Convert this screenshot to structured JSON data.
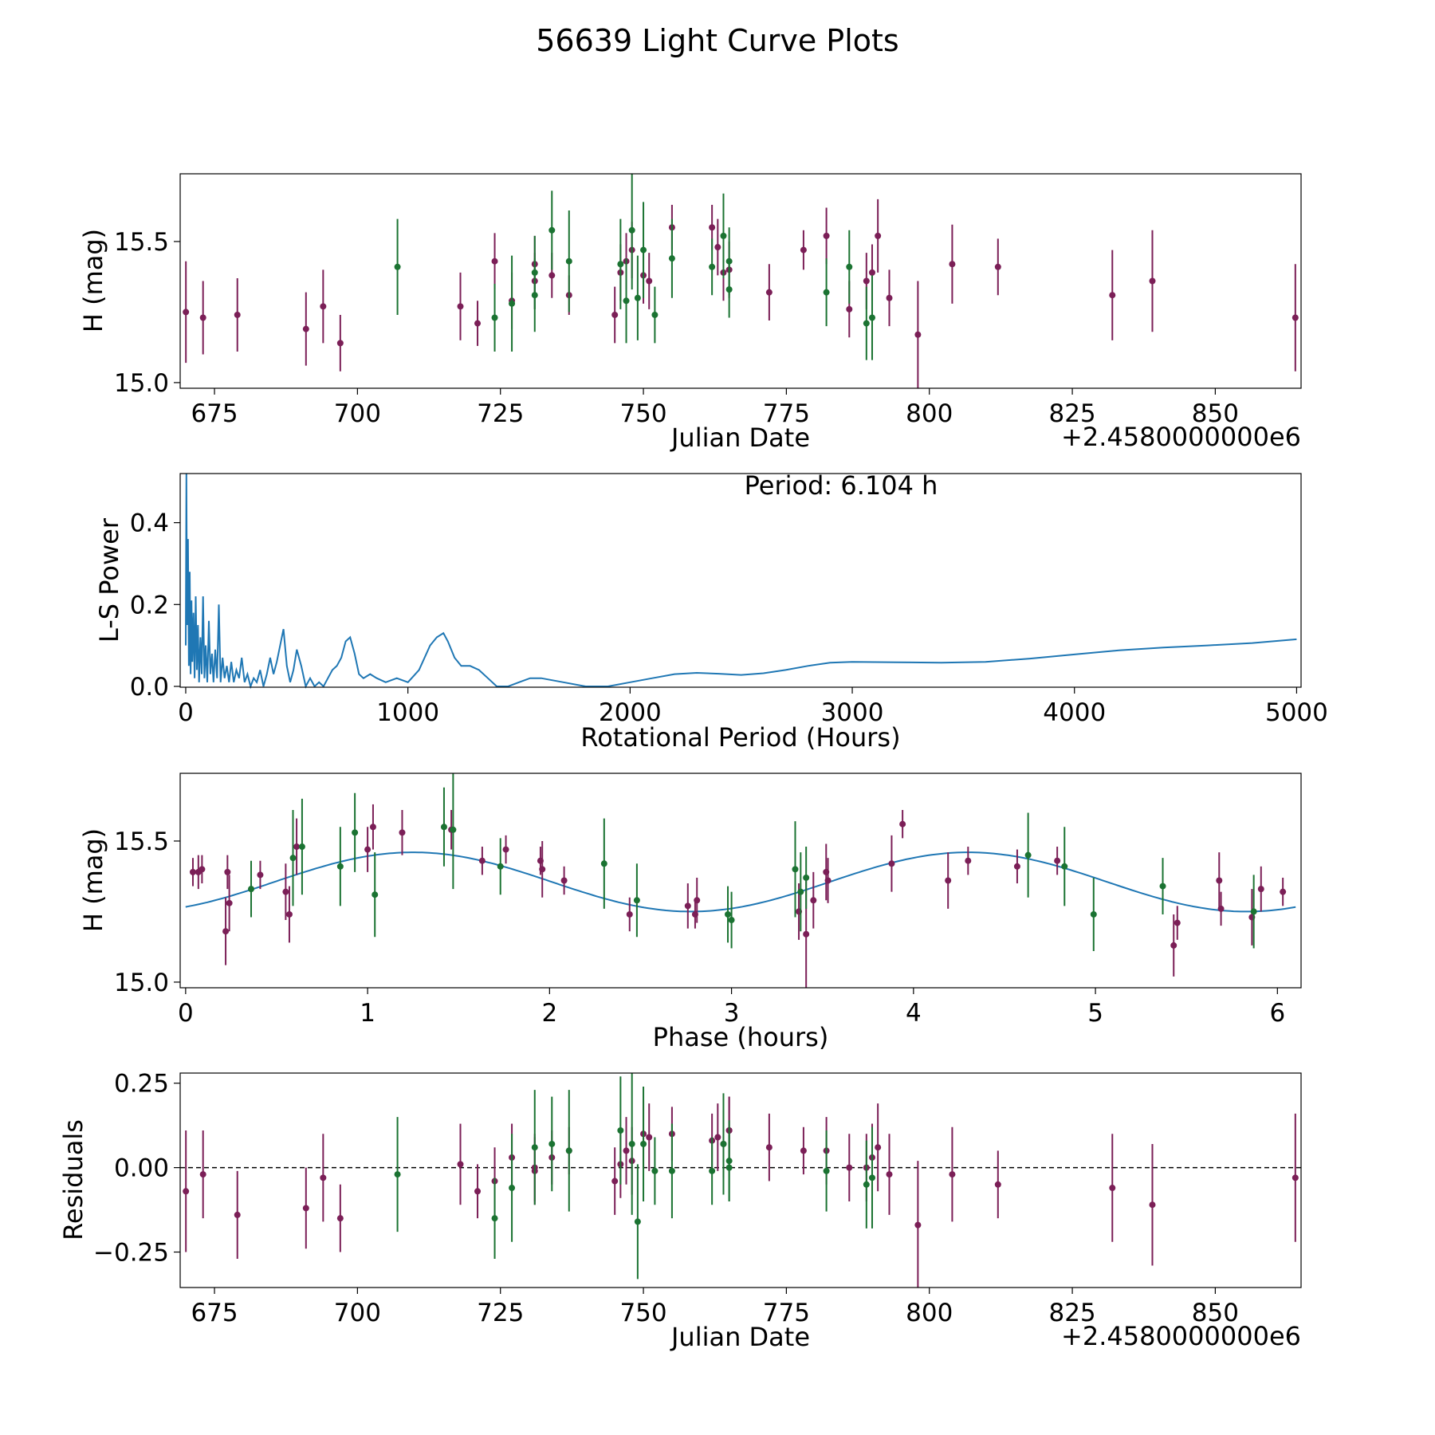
{
  "figure": {
    "title": "56639 Light Curve Plots"
  },
  "colors": {
    "band_r": "#7b1f57",
    "band_g": "#1b7332",
    "model": "#1f77b4",
    "axis": "#000000"
  },
  "chart_data": [
    {
      "type": "scatter",
      "name": "lightcurve",
      "xlabel": "Julian Date",
      "ylabel": "H (mag)",
      "offset_label": "+2.4580000000e6",
      "xlim": [
        669,
        865
      ],
      "ylim": [
        14.98,
        15.74
      ],
      "xticks": [
        675,
        700,
        725,
        750,
        775,
        800,
        825,
        850
      ],
      "yticks": [
        15.0,
        15.5
      ],
      "ytick_labels": [
        "15.0",
        "15.5"
      ],
      "series": [
        {
          "name": "purple band",
          "x": [
            670,
            673,
            679,
            691,
            694,
            697,
            718,
            721,
            724,
            727,
            731,
            731,
            734,
            737,
            745,
            746,
            747,
            748,
            750,
            751,
            755,
            762,
            763,
            764,
            765,
            772,
            778,
            782,
            786,
            789,
            790,
            791,
            793,
            798,
            804,
            812,
            832,
            839,
            864
          ],
          "y": [
            15.25,
            15.23,
            15.24,
            15.19,
            15.27,
            15.14,
            15.27,
            15.21,
            15.43,
            15.29,
            15.42,
            15.36,
            15.38,
            15.31,
            15.24,
            15.39,
            15.43,
            15.47,
            15.38,
            15.36,
            15.55,
            15.55,
            15.48,
            15.39,
            15.4,
            15.32,
            15.47,
            15.52,
            15.26,
            15.36,
            15.39,
            15.52,
            15.3,
            15.17,
            15.42,
            15.41,
            15.31,
            15.36,
            15.23
          ],
          "err": [
            0.18,
            0.13,
            0.13,
            0.13,
            0.13,
            0.1,
            0.12,
            0.08,
            0.1,
            0.1,
            0.1,
            0.1,
            0.08,
            0.07,
            0.1,
            0.1,
            0.1,
            0.1,
            0.1,
            0.1,
            0.08,
            0.08,
            0.1,
            0.1,
            0.1,
            0.1,
            0.07,
            0.1,
            0.1,
            0.1,
            0.1,
            0.13,
            0.1,
            0.19,
            0.14,
            0.1,
            0.16,
            0.18,
            0.19
          ]
        },
        {
          "name": "green band",
          "x": [
            707,
            724,
            727,
            731,
            731,
            734,
            737,
            746,
            747,
            748,
            749,
            750,
            752,
            755,
            762,
            764,
            765,
            765,
            782,
            786,
            789,
            790
          ],
          "y": [
            15.41,
            15.23,
            15.28,
            15.39,
            15.31,
            15.54,
            15.43,
            15.42,
            15.29,
            15.54,
            15.3,
            15.47,
            15.24,
            15.44,
            15.41,
            15.52,
            15.43,
            15.33,
            15.32,
            15.41,
            15.21,
            15.23
          ],
          "err": [
            0.17,
            0.12,
            0.17,
            0.13,
            0.13,
            0.14,
            0.18,
            0.16,
            0.15,
            0.21,
            0.15,
            0.17,
            0.1,
            0.14,
            0.1,
            0.15,
            0.12,
            0.1,
            0.12,
            0.13,
            0.13,
            0.15
          ]
        }
      ]
    },
    {
      "type": "line",
      "name": "periodogram",
      "xlabel": "Rotational Period (Hours)",
      "ylabel": "L-S Power",
      "annotation": "Period: 6.104 h",
      "xlim": [
        -25,
        5020
      ],
      "ylim": [
        -0.002,
        0.52
      ],
      "xticks": [
        0,
        1000,
        2000,
        3000,
        4000,
        5000
      ],
      "yticks": [
        0.0,
        0.2,
        0.4
      ],
      "ytick_labels": [
        "0.0",
        "0.2",
        "0.4"
      ],
      "x": [
        0,
        3,
        6,
        10,
        14,
        18,
        22,
        26,
        30,
        35,
        40,
        45,
        50,
        55,
        60,
        66,
        72,
        78,
        84,
        90,
        97,
        104,
        111,
        118,
        125,
        133,
        141,
        149,
        157,
        166,
        175,
        185,
        195,
        205,
        216,
        228,
        240,
        252,
        265,
        278,
        292,
        306,
        320,
        335,
        350,
        365,
        380,
        395,
        410,
        425,
        440,
        455,
        470,
        485,
        500,
        520,
        540,
        560,
        580,
        600,
        620,
        640,
        660,
        680,
        700,
        720,
        740,
        760,
        780,
        800,
        830,
        860,
        900,
        950,
        1000,
        1050,
        1100,
        1130,
        1160,
        1180,
        1210,
        1240,
        1280,
        1320,
        1360,
        1400,
        1450,
        1500,
        1550,
        1600,
        1700,
        1800,
        1900,
        2000,
        2100,
        2200,
        2300,
        2400,
        2500,
        2600,
        2700,
        2800,
        2900,
        3000,
        3200,
        3400,
        3600,
        3800,
        4000,
        4200,
        4400,
        4600,
        4800,
        5000
      ],
      "y": [
        0.1,
        0.52,
        0.15,
        0.36,
        0.05,
        0.28,
        0.03,
        0.21,
        0.06,
        0.18,
        0.02,
        0.22,
        0.04,
        0.15,
        0.01,
        0.12,
        0.03,
        0.22,
        0.02,
        0.1,
        0.01,
        0.16,
        0.03,
        0.08,
        0.01,
        0.09,
        0.02,
        0.2,
        0.01,
        0.07,
        0.02,
        0.05,
        0.01,
        0.06,
        0.01,
        0.04,
        0.02,
        0.07,
        0.01,
        0.03,
        0.0,
        0.02,
        0.01,
        0.04,
        0.0,
        0.03,
        0.07,
        0.03,
        0.06,
        0.1,
        0.14,
        0.05,
        0.01,
        0.04,
        0.09,
        0.05,
        0.0,
        0.02,
        0.0,
        0.01,
        0.0,
        0.02,
        0.04,
        0.05,
        0.07,
        0.11,
        0.12,
        0.08,
        0.03,
        0.02,
        0.03,
        0.02,
        0.01,
        0.02,
        0.01,
        0.04,
        0.1,
        0.12,
        0.13,
        0.11,
        0.07,
        0.05,
        0.05,
        0.04,
        0.02,
        0.0,
        0.0,
        0.01,
        0.02,
        0.02,
        0.01,
        0.0,
        0.0,
        0.01,
        0.02,
        0.03,
        0.033,
        0.031,
        0.028,
        0.032,
        0.04,
        0.05,
        0.058,
        0.06,
        0.059,
        0.058,
        0.06,
        0.068,
        0.078,
        0.088,
        0.095,
        0.1,
        0.106,
        0.115
      ]
    },
    {
      "type": "scatter",
      "name": "phased",
      "xlabel": "Phase (hours)",
      "ylabel": "H (mag)",
      "xlim": [
        -0.03,
        6.13
      ],
      "ylim": [
        14.98,
        15.74
      ],
      "xticks": [
        0,
        1,
        2,
        3,
        4,
        5,
        6
      ],
      "yticks": [
        15.0,
        15.5
      ],
      "ytick_labels": [
        "15.0",
        "15.5"
      ],
      "model": {
        "mean": 15.355,
        "amplitude": 0.105,
        "peak_phase": 1.25,
        "period": 3.052
      },
      "series": [
        {
          "name": "purple band",
          "x": [
            0.04,
            0.07,
            0.09,
            0.22,
            0.23,
            0.24,
            0.41,
            0.55,
            0.57,
            0.61,
            1.0,
            1.03,
            1.19,
            1.46,
            1.63,
            1.76,
            1.95,
            1.96,
            2.08,
            2.44,
            2.76,
            2.8,
            2.81,
            3.37,
            3.41,
            3.45,
            3.52,
            3.53,
            3.88,
            3.94,
            4.19,
            4.3,
            4.57,
            4.79,
            5.43,
            5.45,
            5.68,
            5.69,
            5.86,
            5.91,
            6.03
          ],
          "y": [
            15.39,
            15.39,
            15.4,
            15.18,
            15.39,
            15.28,
            15.38,
            15.32,
            15.24,
            15.48,
            15.47,
            15.55,
            15.53,
            15.54,
            15.43,
            15.47,
            15.43,
            15.4,
            15.36,
            15.24,
            15.27,
            15.24,
            15.29,
            15.25,
            15.17,
            15.29,
            15.39,
            15.36,
            15.42,
            15.56,
            15.36,
            15.43,
            15.41,
            15.43,
            15.13,
            15.21,
            15.36,
            15.26,
            15.23,
            15.33,
            15.32
          ],
          "err": [
            0.05,
            0.06,
            0.05,
            0.12,
            0.06,
            0.1,
            0.05,
            0.1,
            0.1,
            0.1,
            0.08,
            0.08,
            0.08,
            0.07,
            0.05,
            0.05,
            0.05,
            0.1,
            0.05,
            0.06,
            0.08,
            0.05,
            0.08,
            0.1,
            0.19,
            0.1,
            0.1,
            0.08,
            0.1,
            0.05,
            0.1,
            0.05,
            0.06,
            0.05,
            0.11,
            0.06,
            0.1,
            0.06,
            0.1,
            0.08,
            0.05
          ]
        },
        {
          "name": "green band",
          "x": [
            0.36,
            0.59,
            0.64,
            0.85,
            0.93,
            1.04,
            1.42,
            1.47,
            1.73,
            2.3,
            2.48,
            2.98,
            3.0,
            3.35,
            3.38,
            3.41,
            4.63,
            4.83,
            4.99,
            5.37,
            5.87
          ],
          "y": [
            15.33,
            15.44,
            15.48,
            15.41,
            15.53,
            15.31,
            15.55,
            15.54,
            15.41,
            15.42,
            15.29,
            15.24,
            15.22,
            15.4,
            15.32,
            15.37,
            15.45,
            15.41,
            15.24,
            15.34,
            15.25
          ],
          "err": [
            0.1,
            0.17,
            0.17,
            0.14,
            0.14,
            0.15,
            0.14,
            0.21,
            0.1,
            0.16,
            0.13,
            0.1,
            0.1,
            0.17,
            0.14,
            0.11,
            0.15,
            0.14,
            0.13,
            0.1,
            0.13
          ]
        }
      ]
    },
    {
      "type": "scatter",
      "name": "residuals",
      "xlabel": "Julian Date",
      "ylabel": "Residuals",
      "offset_label": "+2.4580000000e6",
      "xlim": [
        669,
        865
      ],
      "ylim": [
        -0.355,
        0.28
      ],
      "xticks": [
        675,
        700,
        725,
        750,
        775,
        800,
        825,
        850
      ],
      "yticks": [
        -0.25,
        0.0,
        0.25
      ],
      "ytick_labels": [
        "−0.25",
        "0.00",
        "0.25"
      ],
      "zero_line": 0,
      "series": [
        {
          "name": "purple band",
          "x": [
            670,
            673,
            679,
            691,
            694,
            697,
            718,
            721,
            724,
            727,
            731,
            731,
            734,
            737,
            745,
            746,
            747,
            748,
            750,
            751,
            755,
            762,
            763,
            764,
            765,
            765,
            772,
            778,
            782,
            786,
            789,
            790,
            791,
            793,
            798,
            804,
            812,
            832,
            839,
            864
          ],
          "y": [
            -0.07,
            -0.02,
            -0.14,
            -0.12,
            -0.03,
            -0.15,
            0.01,
            -0.07,
            -0.04,
            0.03,
            0.0,
            -0.01,
            0.03,
            0.05,
            -0.04,
            0.01,
            0.05,
            0.02,
            0.1,
            0.09,
            0.1,
            0.08,
            0.09,
            0.07,
            0.11,
            0.11,
            0.06,
            0.05,
            0.05,
            0.0,
            0.0,
            0.03,
            0.06,
            -0.02,
            -0.17,
            -0.02,
            -0.05,
            -0.06,
            -0.11,
            -0.03
          ],
          "err": [
            0.18,
            0.13,
            0.13,
            0.12,
            0.13,
            0.1,
            0.12,
            0.08,
            0.1,
            0.1,
            0.1,
            0.1,
            0.08,
            0.07,
            0.1,
            0.1,
            0.1,
            0.1,
            0.1,
            0.1,
            0.08,
            0.08,
            0.1,
            0.1,
            0.1,
            0.1,
            0.1,
            0.07,
            0.1,
            0.1,
            0.1,
            0.1,
            0.13,
            0.12,
            0.19,
            0.14,
            0.1,
            0.16,
            0.18,
            0.19
          ]
        },
        {
          "name": "green band",
          "x": [
            707,
            724,
            727,
            731,
            734,
            737,
            746,
            748,
            749,
            750,
            752,
            755,
            762,
            764,
            765,
            765,
            782,
            789,
            790
          ],
          "y": [
            -0.02,
            -0.15,
            -0.06,
            0.06,
            0.07,
            0.05,
            0.11,
            0.07,
            -0.16,
            0.07,
            -0.01,
            -0.01,
            -0.01,
            0.07,
            0.02,
            0.0,
            -0.01,
            -0.05,
            -0.03
          ],
          "err": [
            0.17,
            0.12,
            0.16,
            0.17,
            0.14,
            0.18,
            0.16,
            0.21,
            0.17,
            0.17,
            0.1,
            0.14,
            0.1,
            0.15,
            0.12,
            0.1,
            0.12,
            0.13,
            0.15
          ]
        }
      ]
    }
  ]
}
